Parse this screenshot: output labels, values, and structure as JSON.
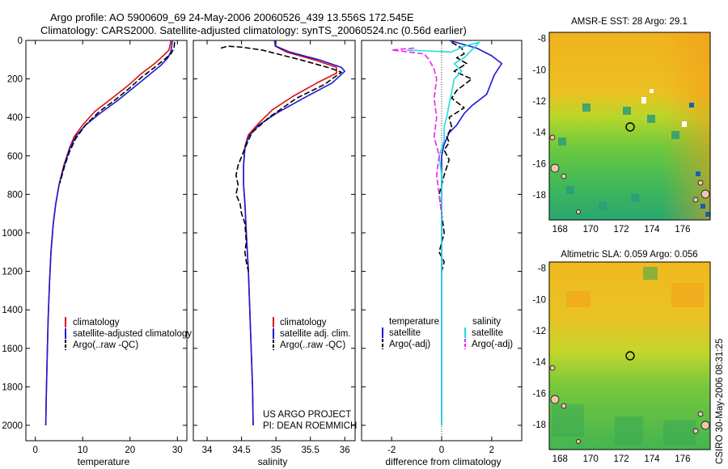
{
  "header": {
    "title_line1": "Argo profile: AO 5900609_69 24-May-2006 20060526_439 13.556S 172.545E",
    "title_line2": "Climatology: CARS2000. Satellite-adjusted climatology: synTS_20060524.nc (0.56d earlier)"
  },
  "project": {
    "line1": "US ARGO PROJECT",
    "line2": "PI: DEAN ROEMMICH"
  },
  "stamp": "CSIRO 30-May-2006 08:31:25",
  "colors": {
    "climatology": "#dd1111",
    "satellite": "#1a1ad6",
    "argo": "#000000",
    "salinity_sat": "#22dddd",
    "salinity_argo": "#ee22ee"
  },
  "chart_data": [
    {
      "type": "line",
      "id": "temperature",
      "xlabel": "temperature",
      "ylabel": "",
      "xlim": [
        -2,
        32
      ],
      "ylim": [
        2080,
        0
      ],
      "xticks": [
        0,
        10,
        20,
        30
      ],
      "yticks": [
        0,
        200,
        400,
        600,
        800,
        1000,
        1200,
        1400,
        1600,
        1800,
        2000
      ],
      "legend": [
        "climatology",
        "satellite-adjusted climatology",
        "Argo(..raw -QC)"
      ],
      "series": [
        {
          "name": "climatology",
          "color": "#dd1111",
          "points": [
            [
              28.6,
              0
            ],
            [
              28.5,
              20
            ],
            [
              28.2,
              50
            ],
            [
              27.0,
              80
            ],
            [
              25.2,
              120
            ],
            [
              22.5,
              170
            ],
            [
              19.8,
              230
            ],
            [
              16.2,
              300
            ],
            [
              12.5,
              370
            ],
            [
              10.0,
              440
            ],
            [
              8.2,
              500
            ],
            [
              7.2,
              560
            ],
            [
              6.0,
              650
            ],
            [
              5.0,
              750
            ],
            [
              4.3,
              850
            ],
            [
              3.8,
              950
            ],
            [
              3.3,
              1100
            ],
            [
              3.0,
              1250
            ],
            [
              2.7,
              1450
            ],
            [
              2.5,
              1650
            ],
            [
              2.3,
              1850
            ],
            [
              2.2,
              2000
            ]
          ]
        },
        {
          "name": "satellite-adjusted climatology",
          "color": "#1a1ad6",
          "points": [
            [
              28.9,
              0
            ],
            [
              28.8,
              30
            ],
            [
              28.6,
              60
            ],
            [
              28.0,
              90
            ],
            [
              26.5,
              130
            ],
            [
              24.0,
              180
            ],
            [
              21.0,
              240
            ],
            [
              17.5,
              310
            ],
            [
              13.6,
              380
            ],
            [
              10.6,
              440
            ],
            [
              8.5,
              500
            ],
            [
              7.3,
              560
            ],
            [
              6.1,
              650
            ],
            [
              5.0,
              750
            ],
            [
              4.3,
              850
            ],
            [
              3.8,
              950
            ],
            [
              3.3,
              1100
            ],
            [
              3.0,
              1250
            ],
            [
              2.7,
              1450
            ],
            [
              2.5,
              1650
            ],
            [
              2.3,
              1850
            ],
            [
              2.2,
              2000
            ]
          ]
        },
        {
          "name": "Argo(..raw -QC)",
          "color": "#000000",
          "dashed": true,
          "points": [
            [
              29.4,
              8
            ],
            [
              29.3,
              40
            ],
            [
              28.6,
              70
            ],
            [
              27.2,
              100
            ],
            [
              25.2,
              140
            ],
            [
              22.5,
              190
            ],
            [
              19.8,
              250
            ],
            [
              16.8,
              310
            ],
            [
              13.5,
              370
            ],
            [
              10.6,
              440
            ],
            [
              8.5,
              510
            ],
            [
              7.2,
              580
            ],
            [
              6.2,
              650
            ],
            [
              5.2,
              740
            ]
          ]
        }
      ]
    },
    {
      "type": "line",
      "id": "salinity",
      "xlabel": "salinity",
      "ylabel": "",
      "xlim": [
        33.8,
        36.15
      ],
      "ylim": [
        2080,
        0
      ],
      "xticks": [
        34,
        34.5,
        35,
        35.5,
        36
      ],
      "legend": [
        "climatology",
        "satellite adj. clim.",
        "Argo(..raw -QC)"
      ],
      "series": [
        {
          "name": "climatology",
          "color": "#dd1111",
          "points": [
            [
              34.98,
              0
            ],
            [
              34.99,
              30
            ],
            [
              35.15,
              60
            ],
            [
              35.55,
              100
            ],
            [
              35.88,
              140
            ],
            [
              35.88,
              170
            ],
            [
              35.6,
              220
            ],
            [
              35.25,
              290
            ],
            [
              34.95,
              360
            ],
            [
              34.75,
              430
            ],
            [
              34.6,
              490
            ],
            [
              34.55,
              550
            ],
            [
              34.53,
              650
            ],
            [
              34.53,
              750
            ],
            [
              34.55,
              850
            ],
            [
              34.57,
              1000
            ],
            [
              34.6,
              1200
            ],
            [
              34.62,
              1400
            ],
            [
              34.64,
              1600
            ],
            [
              34.66,
              1800
            ],
            [
              34.67,
              2000
            ]
          ]
        },
        {
          "name": "satellite adj. clim.",
          "color": "#1a1ad6",
          "points": [
            [
              34.98,
              0
            ],
            [
              35.0,
              30
            ],
            [
              35.2,
              60
            ],
            [
              35.62,
              100
            ],
            [
              35.95,
              140
            ],
            [
              36.0,
              160
            ],
            [
              35.82,
              220
            ],
            [
              35.4,
              300
            ],
            [
              35.0,
              380
            ],
            [
              34.75,
              440
            ],
            [
              34.6,
              500
            ],
            [
              34.55,
              560
            ],
            [
              34.53,
              650
            ],
            [
              34.53,
              750
            ],
            [
              34.55,
              850
            ],
            [
              34.57,
              1000
            ],
            [
              34.6,
              1200
            ],
            [
              34.62,
              1400
            ],
            [
              34.64,
              1600
            ],
            [
              34.66,
              1800
            ],
            [
              34.67,
              2000
            ]
          ]
        },
        {
          "name": "Argo(..raw -QC)",
          "color": "#000000",
          "dashed": true,
          "points": [
            [
              34.2,
              40
            ],
            [
              34.3,
              30
            ],
            [
              34.5,
              35
            ],
            [
              34.8,
              50
            ],
            [
              35.35,
              100
            ],
            [
              35.8,
              145
            ],
            [
              35.95,
              165
            ],
            [
              35.7,
              230
            ],
            [
              35.3,
              300
            ],
            [
              34.9,
              400
            ],
            [
              34.65,
              480
            ],
            [
              34.55,
              560
            ],
            [
              34.45,
              650
            ],
            [
              34.42,
              700
            ],
            [
              34.45,
              750
            ],
            [
              34.42,
              800
            ],
            [
              34.48,
              850
            ],
            [
              34.5,
              900
            ],
            [
              34.55,
              950
            ],
            [
              34.57,
              1050
            ],
            [
              34.55,
              1100
            ],
            [
              34.57,
              1150
            ],
            [
              34.6,
              1200
            ]
          ]
        }
      ]
    },
    {
      "type": "line",
      "id": "difference",
      "xlabel": "difference from climatology",
      "ylabel": "",
      "xlim": [
        -3.2,
        3.2
      ],
      "ylim": [
        2080,
        0
      ],
      "xticks": [
        -2,
        0,
        2
      ],
      "legend_headers": [
        "temperature",
        "salinity"
      ],
      "legend": [
        "satellite",
        "Argo(-adj)",
        "satellite",
        "Argo(-adj)"
      ],
      "series": [
        {
          "name": "temperature satellite",
          "color": "#1a1ad6",
          "points": [
            [
              0.3,
              0
            ],
            [
              1.4,
              40
            ],
            [
              2.0,
              80
            ],
            [
              2.4,
              120
            ],
            [
              2.1,
              180
            ],
            [
              1.8,
              280
            ],
            [
              1.2,
              340
            ],
            [
              0.9,
              380
            ],
            [
              0.6,
              440
            ],
            [
              0.3,
              480
            ],
            [
              0.1,
              540
            ],
            [
              0.0,
              600
            ],
            [
              0.0,
              2000
            ]
          ]
        },
        {
          "name": "temperature Argo(-adj)",
          "color": "#000000",
          "dashed": true,
          "points": [
            [
              0.4,
              10
            ],
            [
              0.8,
              40
            ],
            [
              0.9,
              70
            ],
            [
              0.6,
              90
            ],
            [
              1.0,
              120
            ],
            [
              0.5,
              160
            ],
            [
              1.2,
              200
            ],
            [
              0.6,
              260
            ],
            [
              0.4,
              300
            ],
            [
              0.9,
              350
            ],
            [
              0.3,
              400
            ],
            [
              0.4,
              450
            ],
            [
              0.2,
              500
            ],
            [
              0.3,
              530
            ],
            [
              0.1,
              570
            ],
            [
              0.3,
              620
            ],
            [
              0.1,
              700
            ],
            [
              -0.1,
              800
            ],
            [
              0.0,
              900
            ],
            [
              0.1,
              1000
            ],
            [
              -0.1,
              1100
            ],
            [
              0.1,
              1150
            ],
            [
              0.0,
              1200
            ]
          ]
        },
        {
          "name": "salinity satellite",
          "color": "#22dddd",
          "points": [
            [
              -1.4,
              50
            ],
            [
              0.4,
              60
            ],
            [
              0.9,
              30
            ],
            [
              1.5,
              10
            ],
            [
              1.2,
              50
            ],
            [
              0.9,
              90
            ],
            [
              0.5,
              120
            ],
            [
              0.8,
              160
            ],
            [
              0.5,
              200
            ],
            [
              0.4,
              270
            ],
            [
              0.3,
              330
            ],
            [
              0.2,
              400
            ],
            [
              0.1,
              450
            ],
            [
              0.1,
              520
            ],
            [
              -0.1,
              600
            ],
            [
              0.0,
              700
            ],
            [
              0.0,
              2000
            ]
          ]
        },
        {
          "name": "salinity Argo(-adj)",
          "color": "#ee22ee",
          "dashed": true,
          "points": [
            [
              -1.1,
              40
            ],
            [
              -2.0,
              50
            ],
            [
              -1.3,
              60
            ],
            [
              -0.7,
              70
            ],
            [
              -0.5,
              100
            ],
            [
              -0.3,
              150
            ],
            [
              -0.2,
              200
            ],
            [
              -0.3,
              300
            ],
            [
              -0.2,
              400
            ],
            [
              -0.3,
              500
            ],
            [
              -0.1,
              600
            ],
            [
              -0.2,
              700
            ],
            [
              -0.1,
              800
            ],
            [
              0.0,
              900
            ]
          ]
        }
      ]
    },
    {
      "type": "heatmap",
      "id": "sst-map",
      "title": "AMSR-E SST: 28 Argo: 29.1",
      "xlim": [
        167.3,
        177.8
      ],
      "ylim": [
        -19.6,
        -7.6
      ],
      "xticks": [
        168,
        170,
        172,
        174,
        176
      ],
      "yticks": [
        -8,
        -10,
        -12,
        -14,
        -16,
        -18
      ],
      "argo_position": [
        172.545,
        -13.556
      ]
    },
    {
      "type": "heatmap",
      "id": "sla-map",
      "title": "Altimetric SLA: 0.059 Argo: 0.056",
      "xlim": [
        167.3,
        177.8
      ],
      "ylim": [
        -19.6,
        -7.6
      ],
      "xticks": [
        168,
        170,
        172,
        174,
        176
      ],
      "yticks": [
        -8,
        -10,
        -12,
        -14,
        -16,
        -18
      ],
      "argo_position": [
        172.545,
        -13.556
      ]
    }
  ]
}
